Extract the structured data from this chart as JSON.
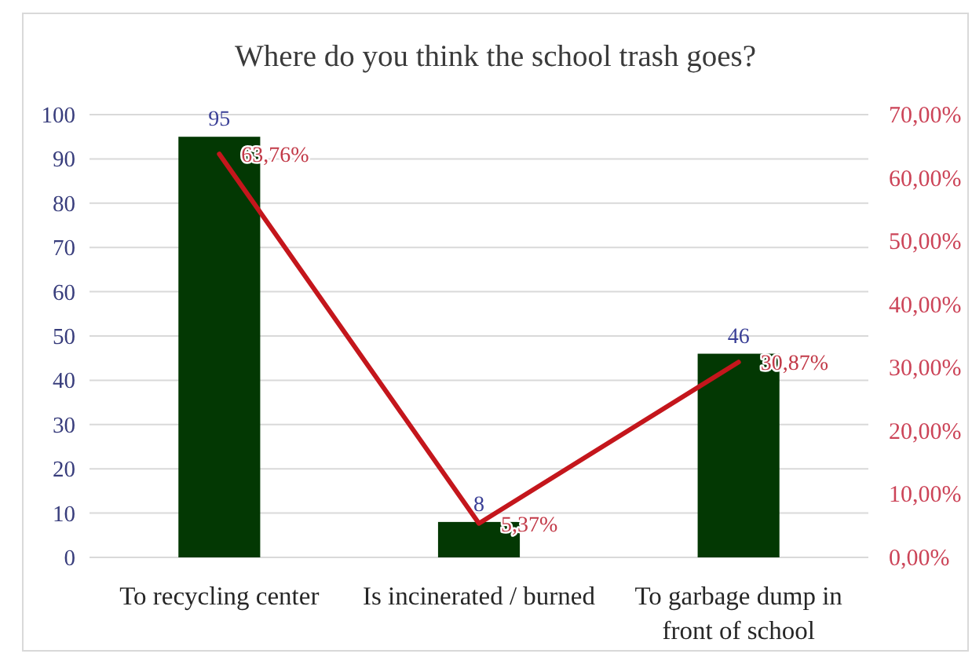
{
  "chart_data": {
    "type": "bar",
    "title": "Where do you think the school trash goes?",
    "categories": [
      "To recycling center",
      "Is incinerated / burned",
      "To garbage dump in front of school"
    ],
    "series": [
      {
        "color": "#033803",
        "values": [
          95,
          8,
          46
        ],
        "value_labels": [
          "95",
          "8",
          "46"
        ]
      },
      {
        "type": "line",
        "axis": "y2",
        "color": "#c4161c",
        "values": [
          63.76,
          5.37,
          30.87
        ],
        "value_labels": [
          "63,76%",
          "5,37%",
          "30,87%"
        ]
      }
    ],
    "ylim": [
      0,
      100
    ],
    "yticks": [
      0,
      10,
      20,
      30,
      40,
      50,
      60,
      70,
      80,
      90,
      100
    ],
    "y2lim": [
      0,
      70
    ],
    "y2ticks": [
      {
        "value": 0,
        "label": "0,00%"
      },
      {
        "value": 10,
        "label": "10,00%"
      },
      {
        "value": 20,
        "label": "20,00%"
      },
      {
        "value": 30,
        "label": "30,00%"
      },
      {
        "value": 40,
        "label": "40,00%"
      },
      {
        "value": 50,
        "label": "50,00%"
      },
      {
        "value": 60,
        "label": "60,00%"
      },
      {
        "value": 70,
        "label": "70,00%"
      }
    ],
    "grid": "y",
    "marker": "none",
    "line_style": "solid"
  }
}
